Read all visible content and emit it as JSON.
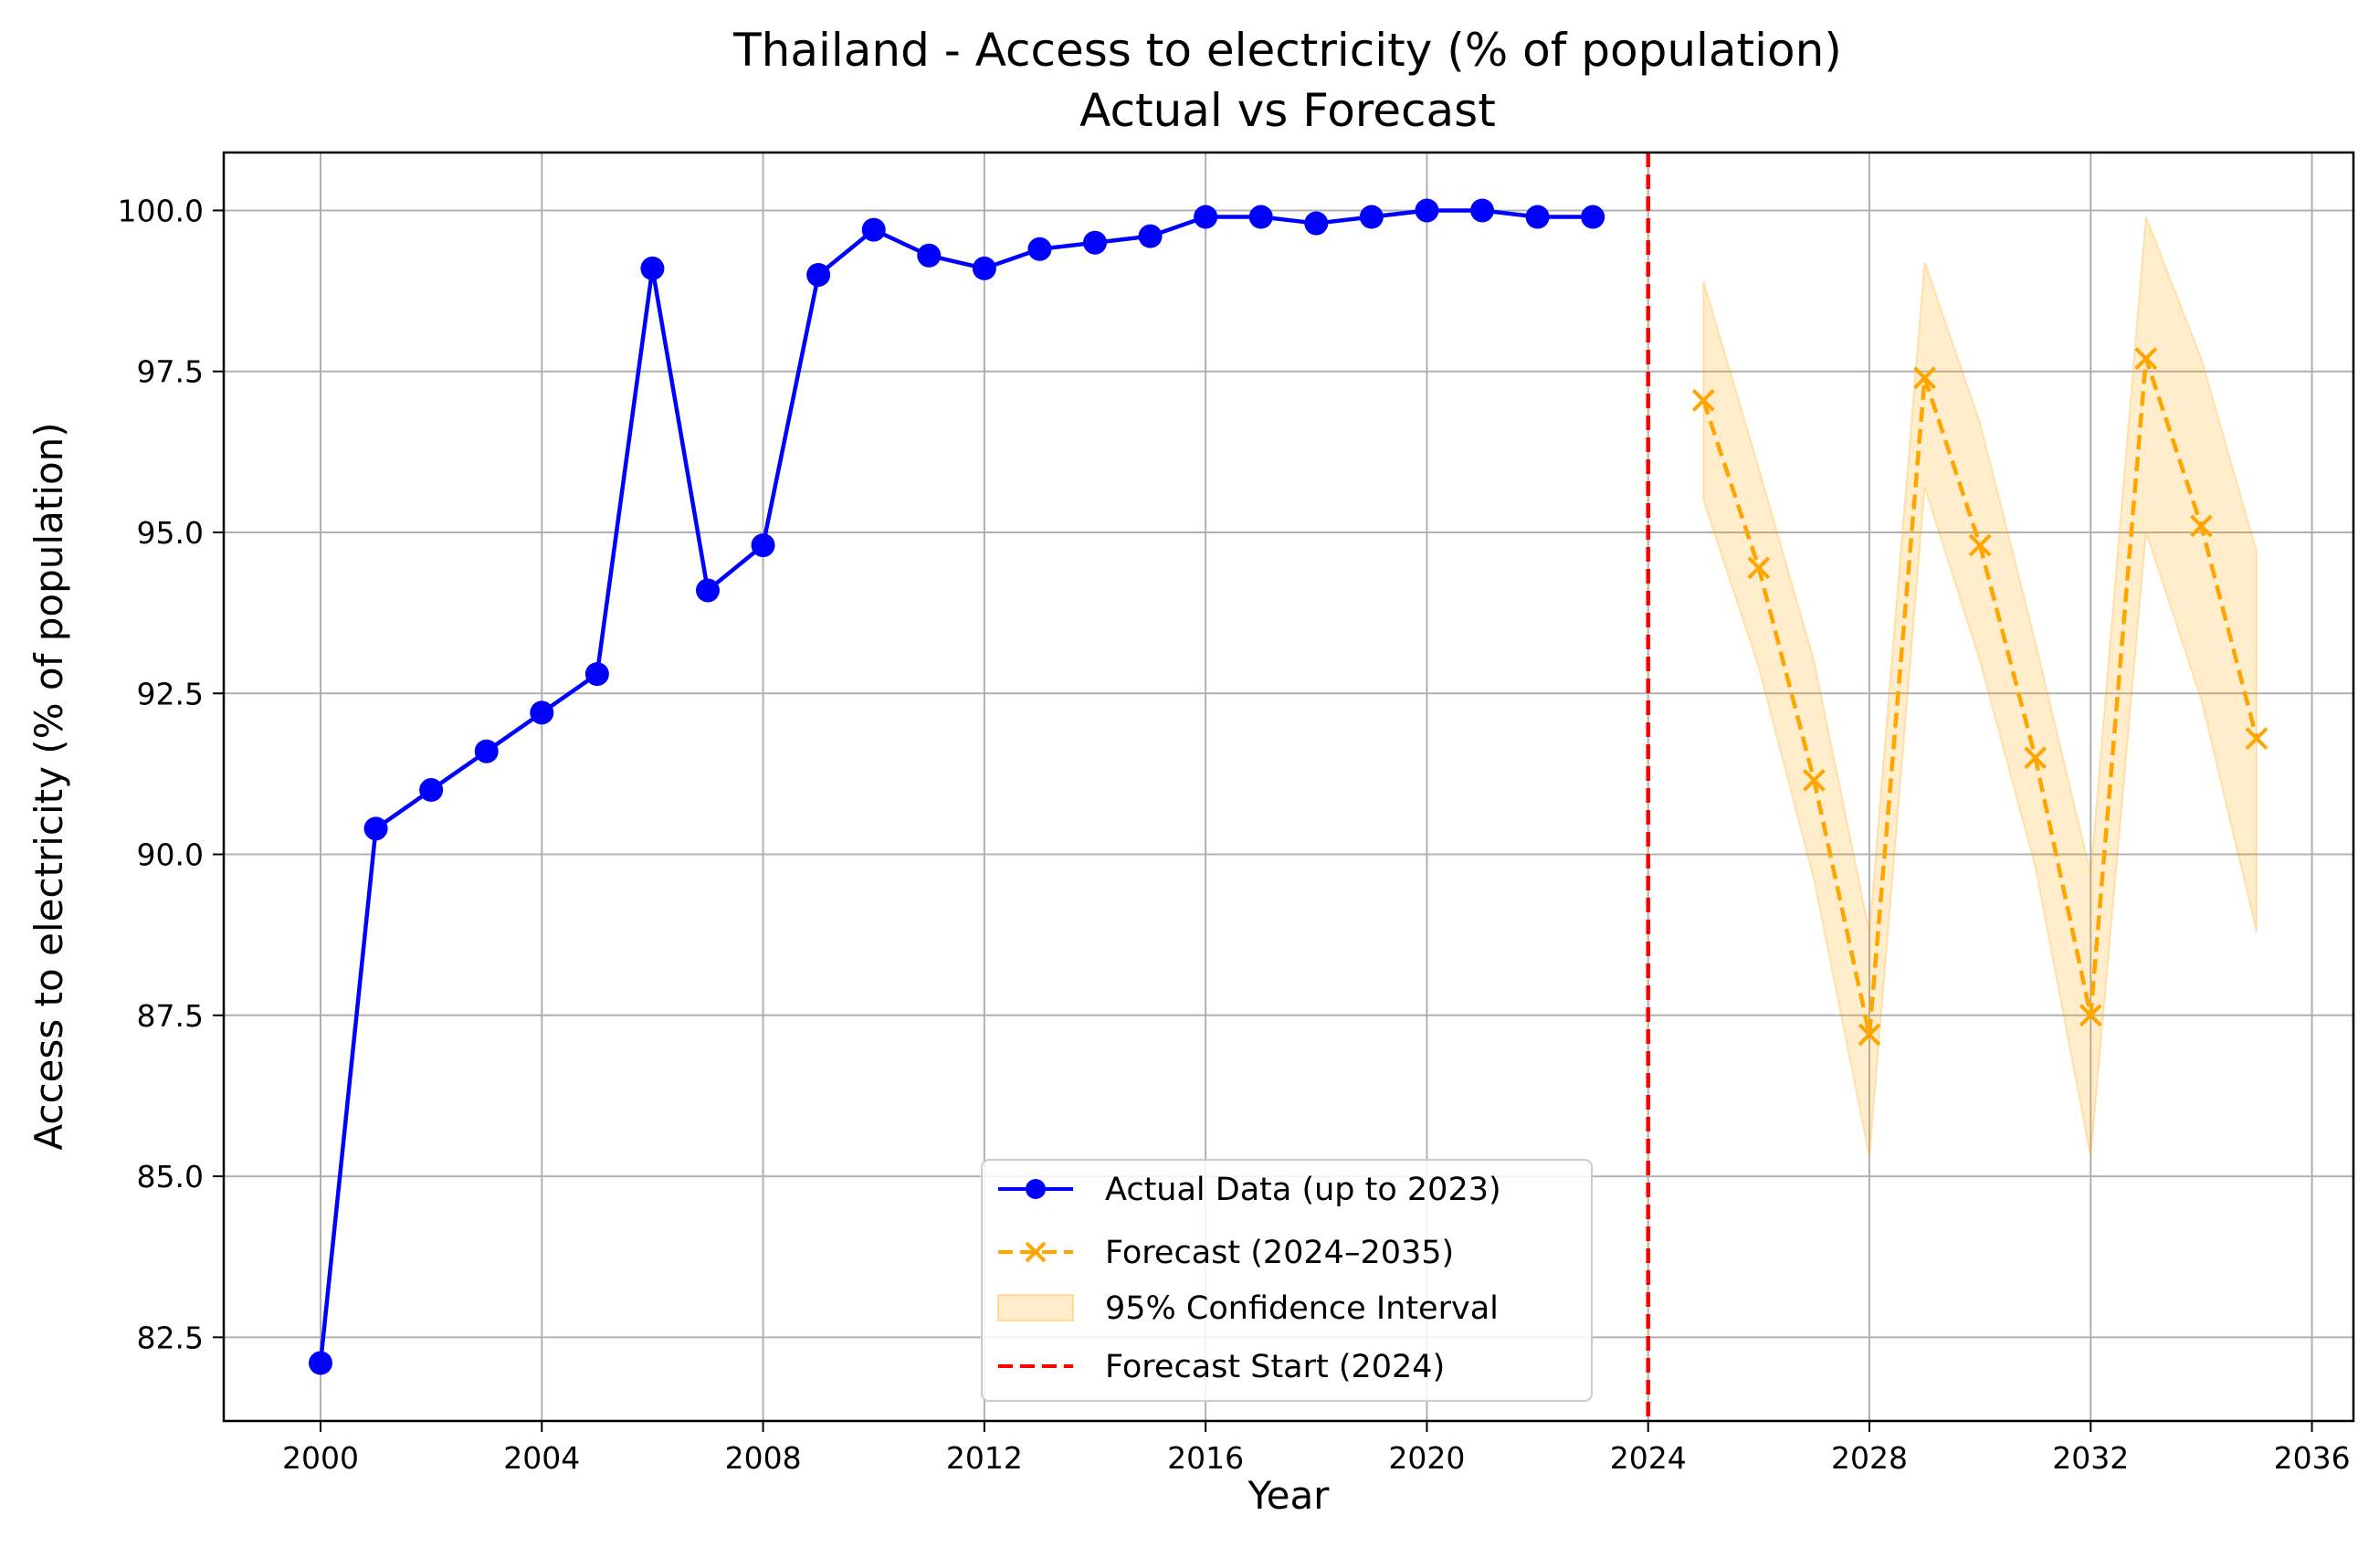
{
  "chart_data": {
    "type": "line",
    "title": "Thailand - Access to electricity (% of population)",
    "subtitle": "Actual vs Forecast",
    "xlabel": "Year",
    "ylabel": "Access to electricity (% of population)",
    "xlim": [
      1998.25,
      2036.75
    ],
    "ylim": [
      81.2,
      100.9
    ],
    "xticks": [
      2000,
      2004,
      2008,
      2012,
      2016,
      2020,
      2024,
      2028,
      2032,
      2036
    ],
    "yticks": [
      82.5,
      85.0,
      87.5,
      90.0,
      92.5,
      95.0,
      97.5,
      100.0
    ],
    "grid": true,
    "legend_position": "lower-center",
    "series": [
      {
        "name": "Actual Data (up to 2023)",
        "style": "solid-line-circle-markers",
        "color": "#0000ff",
        "x": [
          2000,
          2001,
          2002,
          2003,
          2004,
          2005,
          2006,
          2007,
          2008,
          2009,
          2010,
          2011,
          2012,
          2013,
          2014,
          2015,
          2016,
          2017,
          2018,
          2019,
          2020,
          2021,
          2022,
          2023
        ],
        "y": [
          82.1,
          90.4,
          91.0,
          91.6,
          92.2,
          92.8,
          99.1,
          94.1,
          94.8,
          99.0,
          99.7,
          99.3,
          99.1,
          99.4,
          99.5,
          99.6,
          99.9,
          99.9,
          99.8,
          99.9,
          100.0,
          100.0,
          99.9,
          99.9
        ]
      },
      {
        "name": "Forecast (2024–2035)",
        "style": "dashed-line-x-markers",
        "color": "#ffa500",
        "x": [
          2025,
          2026,
          2027,
          2028,
          2029,
          2030,
          2031,
          2032,
          2033,
          2034,
          2035
        ],
        "y": [
          97.05,
          94.45,
          91.15,
          87.2,
          97.4,
          94.8,
          91.5,
          87.5,
          97.7,
          95.1,
          91.8
        ]
      }
    ],
    "confidence_interval": {
      "name": "95% Confidence Interval",
      "color": "#ffa500",
      "x": [
        2025,
        2026,
        2027,
        2028,
        2029,
        2030,
        2031,
        2032,
        2033,
        2034,
        2035
      ],
      "lower": [
        95.5,
        92.9,
        89.6,
        85.3,
        95.7,
        93.0,
        89.8,
        85.3,
        95.0,
        92.4,
        88.8
      ],
      "upper": [
        98.9,
        96.0,
        93.0,
        88.8,
        99.2,
        96.7,
        93.3,
        89.7,
        99.9,
        97.7,
        94.7
      ]
    },
    "vline": {
      "name": "Forecast Start (2024)",
      "x": 2024,
      "color": "#ff0000",
      "style": "dashed"
    }
  }
}
